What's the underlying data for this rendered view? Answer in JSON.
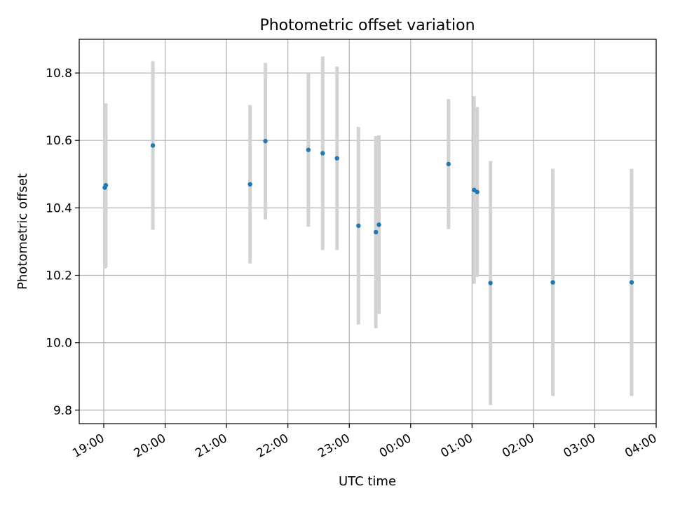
{
  "chart_data": {
    "type": "scatter",
    "title": "Photometric offset variation",
    "xlabel": "UTC time",
    "ylabel": "Photometric offset",
    "grid": true,
    "legend": "none",
    "x_ticks": [
      "19:00",
      "20:00",
      "21:00",
      "22:00",
      "23:00",
      "00:00",
      "01:00",
      "02:00",
      "03:00",
      "04:00"
    ],
    "y_ticks": [
      "9.8",
      "10.0",
      "10.2",
      "10.4",
      "10.6",
      "10.8"
    ],
    "xlim_hours": [
      18.6,
      28.0
    ],
    "ylim": [
      9.76,
      10.9
    ],
    "colors": {
      "point": "#1f77b4",
      "errorbar": "#d3d3d3",
      "grid": "#b0b0b0"
    },
    "points": [
      {
        "time": "19:01",
        "y": 10.46,
        "err": 0.24
      },
      {
        "time": "19:02",
        "y": 10.467,
        "err": 0.243
      },
      {
        "time": "19:48",
        "y": 10.585,
        "err": 0.25
      },
      {
        "time": "21:23",
        "y": 10.47,
        "err": 0.235
      },
      {
        "time": "21:38",
        "y": 10.598,
        "err": 0.232
      },
      {
        "time": "22:20",
        "y": 10.572,
        "err": 0.228
      },
      {
        "time": "22:34",
        "y": 10.562,
        "err": 0.287
      },
      {
        "time": "22:48",
        "y": 10.547,
        "err": 0.272
      },
      {
        "time": "23:09",
        "y": 10.347,
        "err": 0.293
      },
      {
        "time": "23:26",
        "y": 10.328,
        "err": 0.285
      },
      {
        "time": "23:29",
        "y": 10.35,
        "err": 0.265
      },
      {
        "time": "00:37",
        "y": 10.53,
        "err": 0.193
      },
      {
        "time": "01:02",
        "y": 10.453,
        "err": 0.278
      },
      {
        "time": "01:05",
        "y": 10.447,
        "err": 0.252
      },
      {
        "time": "01:18",
        "y": 10.177,
        "err": 0.362
      },
      {
        "time": "02:19",
        "y": 10.179,
        "err": 0.337
      },
      {
        "time": "03:36",
        "y": 10.179,
        "err": 0.337
      }
    ]
  }
}
